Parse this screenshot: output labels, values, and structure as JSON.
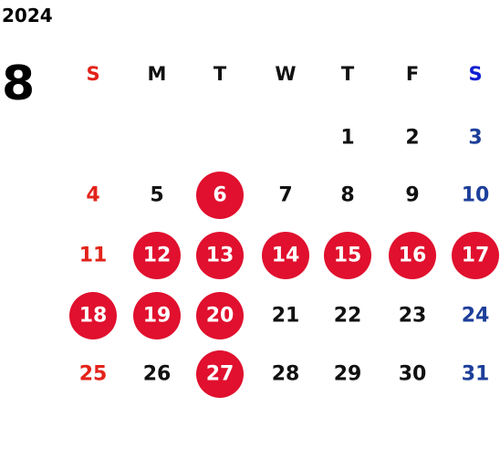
{
  "year": "2024",
  "month": "8",
  "weekdays": [
    "S",
    "M",
    "T",
    "W",
    "T",
    "F",
    "S"
  ],
  "weeks": [
    [
      null,
      null,
      null,
      null,
      {
        "day": "1",
        "marked": false
      },
      {
        "day": "2",
        "marked": false
      },
      {
        "day": "3",
        "marked": false
      }
    ],
    [
      {
        "day": "4",
        "marked": false
      },
      {
        "day": "5",
        "marked": false
      },
      {
        "day": "6",
        "marked": true
      },
      {
        "day": "7",
        "marked": false
      },
      {
        "day": "8",
        "marked": false
      },
      {
        "day": "9",
        "marked": false
      },
      {
        "day": "10",
        "marked": false
      }
    ],
    [
      {
        "day": "11",
        "marked": false
      },
      {
        "day": "12",
        "marked": true
      },
      {
        "day": "13",
        "marked": true
      },
      {
        "day": "14",
        "marked": true
      },
      {
        "day": "15",
        "marked": true
      },
      {
        "day": "16",
        "marked": true
      },
      {
        "day": "17",
        "marked": true
      }
    ],
    [
      {
        "day": "18",
        "marked": true
      },
      {
        "day": "19",
        "marked": true
      },
      {
        "day": "20",
        "marked": true
      },
      {
        "day": "21",
        "marked": false
      },
      {
        "day": "22",
        "marked": false
      },
      {
        "day": "23",
        "marked": false
      },
      {
        "day": "24",
        "marked": false
      }
    ],
    [
      {
        "day": "25",
        "marked": false
      },
      {
        "day": "26",
        "marked": false
      },
      {
        "day": "27",
        "marked": true
      },
      {
        "day": "28",
        "marked": false
      },
      {
        "day": "29",
        "marked": false
      },
      {
        "day": "30",
        "marked": false
      },
      {
        "day": "31",
        "marked": false
      }
    ]
  ]
}
